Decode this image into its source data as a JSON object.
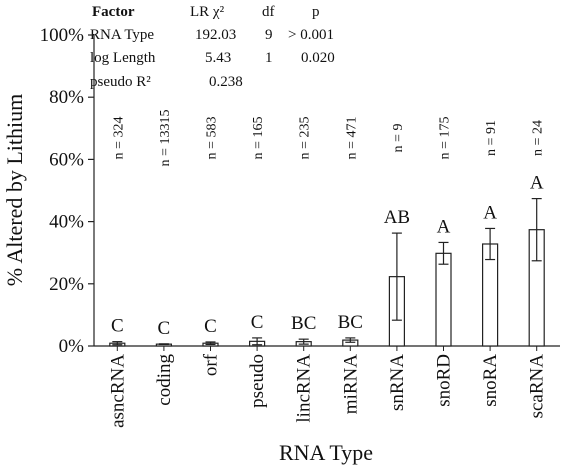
{
  "chart_data": {
    "type": "bar",
    "title": "",
    "xlabel": "RNA Type",
    "ylabel": "% Altered by Lithium",
    "ylim": [
      0,
      100
    ],
    "yticks": [
      "0%",
      "20%",
      "40%",
      "60%",
      "80%",
      "100%"
    ],
    "ytick_values": [
      0,
      20,
      40,
      60,
      80,
      100
    ],
    "grid": false,
    "categories": [
      "asncRNA",
      "coding",
      "orf",
      "pseudo",
      "lincRNA",
      "miRNA",
      "snRNA",
      "snoRD",
      "snoRA",
      "scaRNA"
    ],
    "values": [
      0.9,
      0.6,
      0.9,
      1.5,
      1.4,
      1.9,
      22.3,
      29.8,
      32.8,
      37.4
    ],
    "error": [
      0.5,
      0.1,
      0.4,
      1.1,
      0.8,
      0.7,
      14.0,
      3.5,
      5.0,
      10.0
    ],
    "n_labels": [
      "n = 324",
      "n = 13315",
      "n = 583",
      "n = 165",
      "n = 235",
      "n = 471",
      "n = 9",
      "n = 175",
      "n = 91",
      "n = 24"
    ],
    "group_labels": [
      "C",
      "C",
      "C",
      "C",
      "BC",
      "BC",
      "AB",
      "A",
      "A",
      "A"
    ],
    "stats_table": {
      "header": [
        "Factor",
        "LR χ²",
        "df",
        "p"
      ],
      "rows": [
        [
          "RNA Type",
          "192.03",
          "9",
          "> 0.001"
        ],
        [
          "log Length",
          "5.43",
          "1",
          "0.020"
        ],
        [
          "pseudo R²",
          "0.238",
          "",
          ""
        ]
      ]
    }
  }
}
